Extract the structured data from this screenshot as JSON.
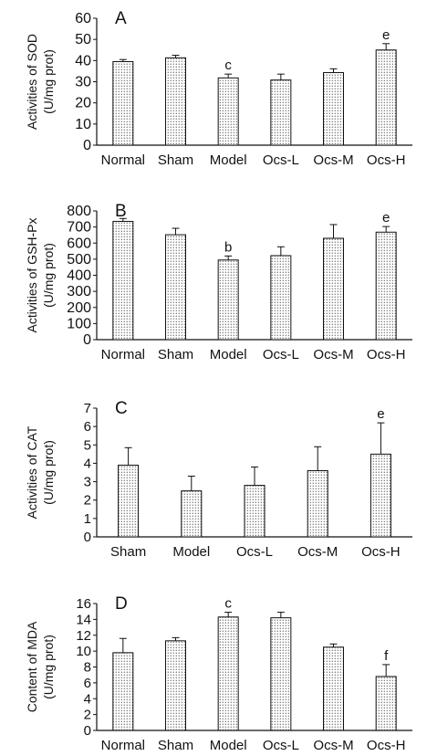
{
  "chart_data": [
    {
      "type": "bar",
      "panel_label": "A",
      "ylabel_line1": "Activities of SOD",
      "ylabel_line2": "(U/mg prot)",
      "categories": [
        "Normal",
        "Sham",
        "Model",
        "Ocs-L",
        "Ocs-M",
        "Ocs-H"
      ],
      "values": [
        39.5,
        41.3,
        31.8,
        30.8,
        34.3,
        45.0
      ],
      "errors": [
        1.0,
        1.2,
        1.8,
        2.8,
        1.8,
        3.0
      ],
      "annotations": [
        "",
        "",
        "c",
        "",
        "",
        "e"
      ],
      "ylim": [
        0,
        60
      ],
      "yticks": [
        "0",
        "10",
        "20",
        "30",
        "40",
        "50",
        "60"
      ]
    },
    {
      "type": "bar",
      "panel_label": "B",
      "ylabel_line1": "Activities of GSH-Px",
      "ylabel_line2": "(U/mg prot)",
      "categories": [
        "Normal",
        "Sham",
        "Model",
        "Ocs-L",
        "Ocs-M",
        "Ocs-H"
      ],
      "values": [
        735,
        652,
        495,
        522,
        630,
        668
      ],
      "errors": [
        18,
        40,
        25,
        55,
        85,
        35
      ],
      "annotations": [
        "",
        "",
        "b",
        "",
        "",
        "e"
      ],
      "ylim": [
        0,
        800
      ],
      "yticks": [
        "0",
        "100",
        "200",
        "300",
        "400",
        "500",
        "600",
        "700",
        "800"
      ]
    },
    {
      "type": "bar",
      "panel_label": "C",
      "ylabel_line1": "Activities of CAT",
      "ylabel_line2": "(U/mg prot)",
      "categories": [
        "Sham",
        "Model",
        "Ocs-L",
        "Ocs-M",
        "Ocs-H"
      ],
      "values": [
        3.9,
        2.5,
        2.8,
        3.6,
        4.5
      ],
      "errors": [
        0.95,
        0.8,
        1.0,
        1.3,
        1.7
      ],
      "annotations": [
        "",
        "",
        "",
        "",
        "e"
      ],
      "ylim": [
        0,
        7
      ],
      "yticks": [
        "0",
        "1",
        "2",
        "3",
        "4",
        "5",
        "6",
        "7"
      ]
    },
    {
      "type": "bar",
      "panel_label": "D",
      "ylabel_line1": "Content of MDA",
      "ylabel_line2": "(U/mg prot)",
      "categories": [
        "Normal",
        "Sham",
        "Model",
        "Ocs-L",
        "Ocs-M",
        "Ocs-H"
      ],
      "values": [
        9.8,
        11.3,
        14.3,
        14.2,
        10.5,
        6.8
      ],
      "errors": [
        1.8,
        0.4,
        0.6,
        0.7,
        0.4,
        1.5
      ],
      "annotations": [
        "",
        "",
        "c",
        "",
        "",
        "f"
      ],
      "ylim": [
        0,
        16
      ],
      "yticks": [
        "0",
        "2",
        "4",
        "6",
        "8",
        "10",
        "12",
        "14",
        "16"
      ]
    }
  ]
}
